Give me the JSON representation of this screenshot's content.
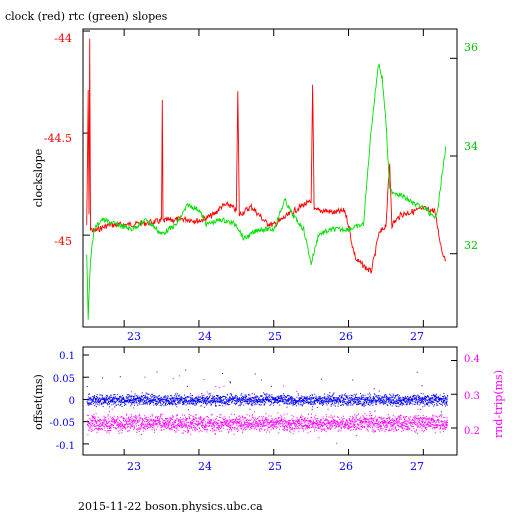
{
  "title": "clock (red) rtc (green) slopes",
  "footer": "2015-11-22  boson.physics.ubc.ca",
  "colors": {
    "red": "#ff0000",
    "green": "#00e000",
    "blue": "#0000ff",
    "magenta": "#ff00ff",
    "axis": "#000000"
  },
  "chart_data": [
    {
      "type": "line",
      "xlim": [
        22.45,
        27.45
      ],
      "x_ticks": [
        "23",
        "24",
        "25",
        "26",
        "27"
      ],
      "ylabel": "clockslope",
      "y_ticks_left": [
        "-44",
        "-44.5",
        "-45"
      ],
      "y_ticks_right": [
        "36",
        "34",
        "32"
      ],
      "ylim_left": [
        -45.45,
        -43.99
      ],
      "ylim_right": [
        30.5,
        36.6
      ],
      "series": [
        {
          "name": "clock (red)",
          "axis": "left",
          "color": "#ff0000",
          "points": [
            [
              22.5,
              -44.95
            ],
            [
              22.52,
              -44.3
            ],
            [
              22.53,
              -44.9
            ],
            [
              22.54,
              -44.05
            ],
            [
              22.55,
              -44.97
            ],
            [
              22.6,
              -44.98
            ],
            [
              22.8,
              -44.95
            ],
            [
              23.0,
              -44.95
            ],
            [
              23.3,
              -44.94
            ],
            [
              23.5,
              -44.93
            ],
            [
              23.51,
              -44.35
            ],
            [
              23.52,
              -44.93
            ],
            [
              23.8,
              -44.92
            ],
            [
              24.0,
              -44.93
            ],
            [
              24.2,
              -44.9
            ],
            [
              24.3,
              -44.86
            ],
            [
              24.4,
              -44.85
            ],
            [
              24.5,
              -44.88
            ],
            [
              24.52,
              -44.3
            ],
            [
              24.54,
              -44.9
            ],
            [
              24.7,
              -44.86
            ],
            [
              24.8,
              -44.9
            ],
            [
              24.9,
              -44.94
            ],
            [
              25.0,
              -44.95
            ],
            [
              25.2,
              -44.9
            ],
            [
              25.4,
              -44.85
            ],
            [
              25.5,
              -44.84
            ],
            [
              25.52,
              -44.25
            ],
            [
              25.54,
              -44.88
            ],
            [
              25.7,
              -44.88
            ],
            [
              25.8,
              -44.89
            ],
            [
              25.95,
              -44.88
            ],
            [
              26.0,
              -44.95
            ],
            [
              26.05,
              -45.05
            ],
            [
              26.1,
              -45.12
            ],
            [
              26.2,
              -45.15
            ],
            [
              26.3,
              -45.18
            ],
            [
              26.35,
              -45.1
            ],
            [
              26.4,
              -45.0
            ],
            [
              26.5,
              -44.95
            ],
            [
              26.55,
              -44.65
            ],
            [
              26.58,
              -44.95
            ],
            [
              26.7,
              -44.9
            ],
            [
              26.9,
              -44.88
            ],
            [
              27.0,
              -44.87
            ],
            [
              27.15,
              -44.88
            ],
            [
              27.2,
              -44.98
            ],
            [
              27.25,
              -45.08
            ],
            [
              27.3,
              -45.12
            ]
          ]
        },
        {
          "name": "rtc (green)",
          "axis": "right",
          "color": "#00e000",
          "points": [
            [
              22.5,
              32.0
            ],
            [
              22.52,
              30.7
            ],
            [
              22.55,
              31.9
            ],
            [
              22.6,
              32.5
            ],
            [
              22.7,
              32.7
            ],
            [
              22.9,
              32.6
            ],
            [
              23.1,
              32.5
            ],
            [
              23.3,
              32.7
            ],
            [
              23.5,
              32.4
            ],
            [
              23.7,
              32.6
            ],
            [
              23.85,
              33.0
            ],
            [
              24.0,
              32.9
            ],
            [
              24.1,
              32.6
            ],
            [
              24.3,
              32.7
            ],
            [
              24.5,
              32.6
            ],
            [
              24.6,
              32.3
            ],
            [
              24.8,
              32.5
            ],
            [
              25.0,
              32.5
            ],
            [
              25.15,
              33.1
            ],
            [
              25.25,
              32.8
            ],
            [
              25.4,
              32.5
            ],
            [
              25.5,
              31.8
            ],
            [
              25.6,
              32.4
            ],
            [
              25.8,
              32.5
            ],
            [
              26.0,
              32.5
            ],
            [
              26.2,
              32.6
            ],
            [
              26.3,
              34.5
            ],
            [
              26.4,
              35.9
            ],
            [
              26.45,
              35.6
            ],
            [
              26.5,
              34.7
            ],
            [
              26.55,
              33.3
            ],
            [
              26.7,
              33.2
            ],
            [
              26.9,
              33.0
            ],
            [
              27.05,
              32.9
            ],
            [
              27.15,
              32.7
            ],
            [
              27.2,
              33.0
            ],
            [
              27.25,
              33.6
            ],
            [
              27.3,
              34.2
            ]
          ]
        }
      ]
    },
    {
      "type": "scatter",
      "xlim": [
        22.45,
        27.45
      ],
      "x_ticks": [
        "23",
        "24",
        "25",
        "26",
        "27"
      ],
      "ylabel_left": "offset(ms)",
      "ylabel_right": "rnd-trip(ms)",
      "y_ticks_left": [
        "0.1",
        "0.05",
        "0",
        "-0.05",
        "-0.1"
      ],
      "y_ticks_right": [
        "0.4",
        "0.3",
        "0.2"
      ],
      "ylim_left": [
        -0.125,
        0.118
      ],
      "ylim_right": [
        0.12,
        0.44
      ],
      "series": [
        {
          "name": "offset",
          "axis": "left",
          "color": "#0000ff",
          "center": 0.0,
          "spread": 0.018
        },
        {
          "name": "rnd-trip",
          "axis": "right",
          "color": "#ff00ff",
          "center": 0.215,
          "spread": 0.035
        }
      ]
    }
  ]
}
